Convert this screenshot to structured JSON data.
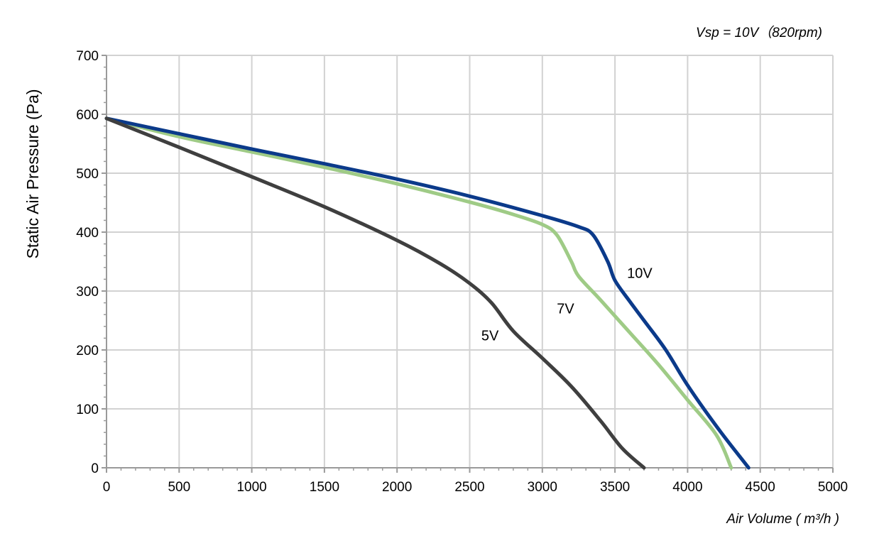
{
  "chart_data": {
    "type": "line",
    "title": "",
    "subtitle": "Vsp = 10V（820rpm)",
    "xlabel": "Air Volume ( m³/h )",
    "ylabel": "Static Air Pressure  (Pa)",
    "xlim": [
      0,
      5000
    ],
    "ylim": [
      0,
      700
    ],
    "x_ticks": [
      "0",
      "500",
      "1000",
      "1500",
      "2000",
      "2500",
      "3000",
      "3500",
      "4000",
      "4500",
      "5000"
    ],
    "y_ticks": [
      "0",
      "100",
      "200",
      "300",
      "400",
      "500",
      "600",
      "700"
    ],
    "grid": true,
    "series": [
      {
        "name": "10V",
        "color": "#0b3a8a",
        "points": [
          [
            0,
            593
          ],
          [
            500,
            567
          ],
          [
            1000,
            541
          ],
          [
            1500,
            516
          ],
          [
            2000,
            490
          ],
          [
            2500,
            461
          ],
          [
            3000,
            428
          ],
          [
            3250,
            409
          ],
          [
            3350,
            395
          ],
          [
            3450,
            350
          ],
          [
            3500,
            318
          ],
          [
            3600,
            283
          ],
          [
            3700,
            250
          ],
          [
            3850,
            200
          ],
          [
            4000,
            140
          ],
          [
            4200,
            70
          ],
          [
            4420,
            0
          ]
        ]
      },
      {
        "name": "7V",
        "color": "#9fcb86",
        "points": [
          [
            0,
            593
          ],
          [
            500,
            562
          ],
          [
            1000,
            536
          ],
          [
            1500,
            510
          ],
          [
            2000,
            482
          ],
          [
            2500,
            451
          ],
          [
            2800,
            430
          ],
          [
            3000,
            413
          ],
          [
            3100,
            395
          ],
          [
            3200,
            350
          ],
          [
            3250,
            325
          ],
          [
            3400,
            285
          ],
          [
            3600,
            230
          ],
          [
            3800,
            175
          ],
          [
            4000,
            115
          ],
          [
            4200,
            55
          ],
          [
            4300,
            0
          ]
        ]
      },
      {
        "name": "5V",
        "color": "#3f3f3f",
        "points": [
          [
            0,
            593
          ],
          [
            500,
            544
          ],
          [
            1000,
            494
          ],
          [
            1500,
            443
          ],
          [
            2000,
            386
          ],
          [
            2300,
            346
          ],
          [
            2500,
            313
          ],
          [
            2650,
            280
          ],
          [
            2800,
            232
          ],
          [
            3000,
            186
          ],
          [
            3200,
            138
          ],
          [
            3400,
            80
          ],
          [
            3550,
            33
          ],
          [
            3700,
            0
          ]
        ]
      }
    ]
  }
}
